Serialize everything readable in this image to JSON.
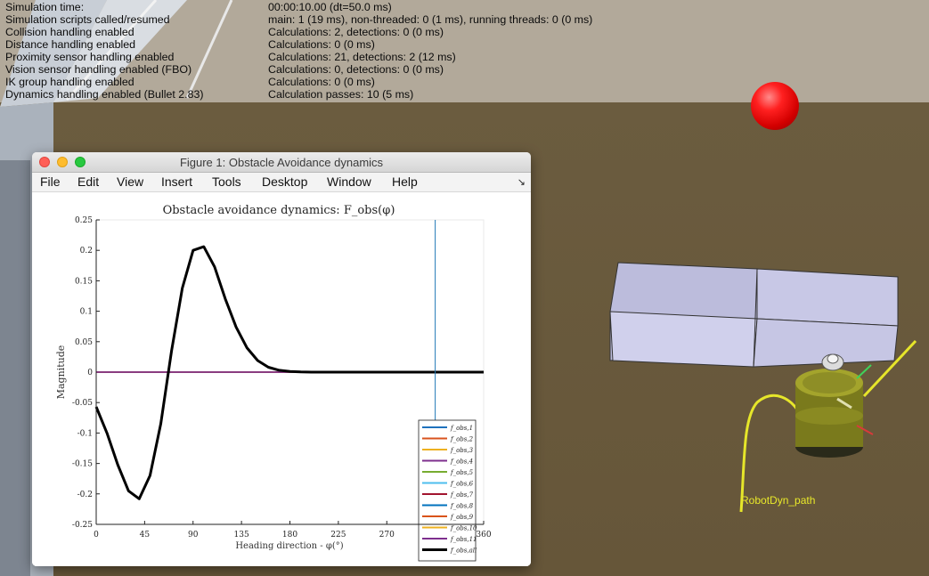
{
  "stats": [
    {
      "label": "Simulation time:",
      "value": "00:00:10.00 (dt=50.0 ms)"
    },
    {
      "label": "Simulation scripts called/resumed",
      "value": "main: 1 (19 ms), non-threaded: 0 (1 ms), running threads: 0 (0 ms)"
    },
    {
      "label": "Collision handling enabled",
      "value": "Calculations: 2, detections: 0 (0 ms)"
    },
    {
      "label": "Distance handling enabled",
      "value": "Calculations: 0 (0 ms)"
    },
    {
      "label": "Proximity sensor handling enabled",
      "value": "Calculations: 21, detections: 2 (12 ms)"
    },
    {
      "label": "Vision sensor handling enabled (FBO)",
      "value": "Calculations: 0, detections: 0 (0 ms)"
    },
    {
      "label": "IK group handling enabled",
      "value": "Calculations: 0 (0 ms)"
    },
    {
      "label": "Dynamics handling enabled (Bullet 2.83)",
      "value": "Calculation passes: 10 (5 ms)"
    }
  ],
  "scene": {
    "path_label": "RobotDyn_path"
  },
  "window": {
    "title": "Figure 1: Obstacle Avoidance dynamics",
    "dock_icon": "dock-arrow-icon"
  },
  "menu": [
    "File",
    "Edit",
    "View",
    "Insert",
    "Tools",
    "Desktop",
    "Window",
    "Help"
  ],
  "chart_data": {
    "type": "line",
    "title": "Obstacle avoidance dynamics: F_obs(φ)",
    "xlabel": "Heading direction - φ(°)",
    "ylabel": "Magnitude",
    "xlim": [
      0,
      360
    ],
    "ylim": [
      -0.25,
      0.25
    ],
    "xticks": [
      "0",
      "45",
      "90",
      "135",
      "180",
      "225",
      "270",
      "315",
      "360"
    ],
    "yticks": [
      "0.25",
      "0.2",
      "0.15",
      "0.1",
      "0.05",
      "0",
      "-0.05",
      "-0.1",
      "-0.15",
      "-0.2",
      "-0.25"
    ],
    "vline_x": 315,
    "vline_color": "#1f77b4",
    "series": [
      {
        "name": "f_obs,1",
        "color": "#1f72bd",
        "x": [
          0,
          360
        ],
        "y": [
          0,
          0
        ]
      },
      {
        "name": "f_obs,2",
        "color": "#d9531e",
        "x": [
          0,
          360
        ],
        "y": [
          0,
          0
        ]
      },
      {
        "name": "f_obs,3",
        "color": "#edb120",
        "x": [
          0,
          360
        ],
        "y": [
          0,
          0
        ]
      },
      {
        "name": "f_obs,4",
        "color": "#7e2f8e",
        "x": [
          0,
          360
        ],
        "y": [
          0,
          0
        ]
      },
      {
        "name": "f_obs,5",
        "color": "#77ac30",
        "x": [
          0,
          360
        ],
        "y": [
          0,
          0
        ]
      },
      {
        "name": "f_obs,6",
        "color": "#4dbeee",
        "x": [
          0,
          360
        ],
        "y": [
          0,
          0
        ]
      },
      {
        "name": "f_obs,7",
        "color": "#a2142f",
        "x": [
          0,
          360
        ],
        "y": [
          0,
          0
        ]
      },
      {
        "name": "f_obs,8",
        "color": "#0072bd",
        "x": [
          0,
          360
        ],
        "y": [
          0,
          0
        ]
      },
      {
        "name": "f_obs,9",
        "color": "#d95319",
        "x": [
          0,
          360
        ],
        "y": [
          0,
          0
        ]
      },
      {
        "name": "f_obs,10",
        "color": "#edb120",
        "x": [
          0,
          360
        ],
        "y": [
          0,
          0
        ]
      },
      {
        "name": "f_obs,11",
        "color": "#7e2f8e",
        "x": [
          0,
          360
        ],
        "y": [
          0,
          0
        ]
      },
      {
        "name": "f_obs,all",
        "color": "#000000",
        "x": [
          0,
          10,
          20,
          30,
          40,
          50,
          60,
          70,
          80,
          90,
          100,
          110,
          120,
          130,
          140,
          150,
          160,
          170,
          180,
          190,
          200,
          220,
          250,
          280,
          315,
          360
        ],
        "y": [
          -0.057,
          -0.1,
          -0.152,
          -0.195,
          -0.208,
          -0.17,
          -0.085,
          0.035,
          0.138,
          0.2,
          0.206,
          0.173,
          0.12,
          0.074,
          0.04,
          0.019,
          0.008,
          0.003,
          0.001,
          0.0003,
          0,
          0,
          0,
          0,
          0,
          0
        ]
      }
    ]
  }
}
